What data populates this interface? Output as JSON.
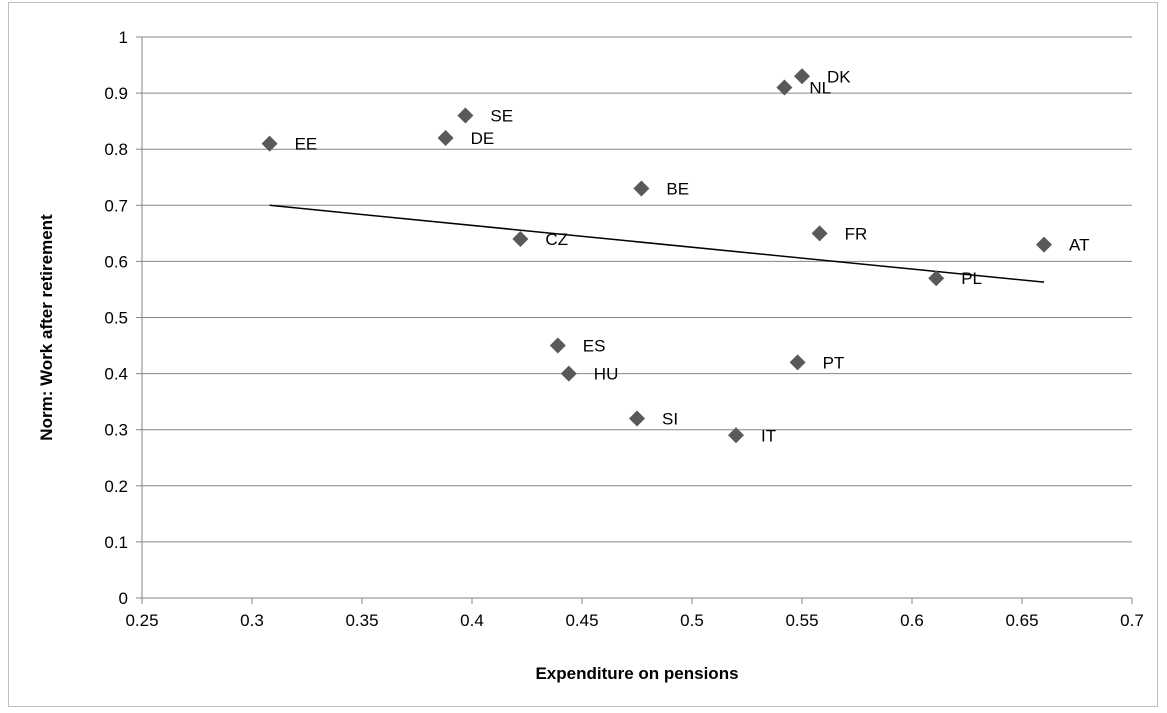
{
  "chart_data": {
    "type": "scatter",
    "title": "",
    "xlabel": "Expenditure on pensions",
    "ylabel": "Norm: Work after retirement",
    "xlim": [
      0.25,
      0.7
    ],
    "ylim": [
      0,
      1
    ],
    "x_ticks": [
      "0.25",
      "0.3",
      "0.35",
      "0.4",
      "0.45",
      "0.5",
      "0.55",
      "0.6",
      "0.65",
      "0.7"
    ],
    "y_ticks": [
      "0",
      "0.1",
      "0.2",
      "0.3",
      "0.4",
      "0.5",
      "0.6",
      "0.7",
      "0.8",
      "0.9",
      "1"
    ],
    "grid": "horizontal",
    "legend": "none",
    "marker": "diamond",
    "marker_color": "#595959",
    "trendline": {
      "type": "linear",
      "x": [
        0.308,
        0.66
      ],
      "y": [
        0.7,
        0.563
      ],
      "color": "#000000"
    },
    "points": [
      {
        "label": "EE",
        "x": 0.308,
        "y": 0.81
      },
      {
        "label": "SE",
        "x": 0.397,
        "y": 0.86
      },
      {
        "label": "DE",
        "x": 0.388,
        "y": 0.82
      },
      {
        "label": "NL",
        "x": 0.542,
        "y": 0.91
      },
      {
        "label": "DK",
        "x": 0.55,
        "y": 0.93
      },
      {
        "label": "BE",
        "x": 0.477,
        "y": 0.73
      },
      {
        "label": "CZ",
        "x": 0.422,
        "y": 0.64
      },
      {
        "label": "FR",
        "x": 0.558,
        "y": 0.65
      },
      {
        "label": "AT",
        "x": 0.66,
        "y": 0.63
      },
      {
        "label": "PL",
        "x": 0.611,
        "y": 0.57
      },
      {
        "label": "ES",
        "x": 0.439,
        "y": 0.45
      },
      {
        "label": "HU",
        "x": 0.444,
        "y": 0.4
      },
      {
        "label": "PT",
        "x": 0.548,
        "y": 0.42
      },
      {
        "label": "SI",
        "x": 0.475,
        "y": 0.32
      },
      {
        "label": "IT",
        "x": 0.52,
        "y": 0.29
      }
    ]
  }
}
